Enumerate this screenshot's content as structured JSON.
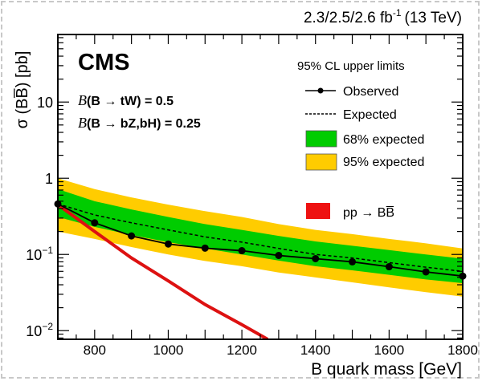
{
  "chart_data": {
    "type": "line",
    "experiment": "CMS",
    "lumi_label": "2.3/2.5/2.6 fb",
    "lumi_exp": "-1",
    "energy_label": "(13 TeV)",
    "annotations": [
      "B(B → tW) = 0.5",
      "B(B → bZ,bH) = 0.25"
    ],
    "annotation_parts": [
      {
        "B": "B",
        "rest": "(B → tW) = 0.5"
      },
      {
        "B": "B",
        "rest": "(B → bZ,bH) = 0.25"
      }
    ],
    "xlabel": "B quark mass [GeV]",
    "ylabel": "σ (BB̅) [pb]",
    "xlim": [
      700,
      1800
    ],
    "ylim": [
      0.0077,
      77
    ],
    "yscale": "log",
    "xticks": [
      800,
      1000,
      1200,
      1400,
      1600,
      1800
    ],
    "yticks": [
      {
        "v": 10,
        "label": "10"
      },
      {
        "v": 1,
        "label": "1"
      },
      {
        "v": 0.1,
        "label": "10",
        "exp": "−1"
      },
      {
        "v": 0.01,
        "label": "10",
        "exp": "−2"
      }
    ],
    "legend": {
      "title": "95% CL upper limits",
      "position": "top-right",
      "entries": [
        "Observed",
        "Expected",
        "68% expected",
        "95% expected",
        "pp → BB̅"
      ]
    },
    "colors": {
      "observed": "#000000",
      "expected": "#000000",
      "band68": "#00cc00",
      "band95": "#ffcc00",
      "theory": "#dd1111"
    },
    "x": [
      700,
      800,
      900,
      1000,
      1100,
      1200,
      1300,
      1400,
      1500,
      1600,
      1700,
      1800
    ],
    "series": [
      {
        "name": "Observed",
        "values": [
          0.46,
          0.26,
          0.175,
          0.137,
          0.121,
          0.112,
          0.097,
          0.088,
          0.08,
          0.069,
          0.059,
          0.052
        ]
      },
      {
        "name": "Expected",
        "values": [
          0.46,
          0.33,
          0.26,
          0.21,
          0.17,
          0.145,
          0.12,
          0.1,
          0.09,
          0.078,
          0.068,
          0.06
        ]
      },
      {
        "name": "68% expected",
        "low": [
          0.31,
          0.23,
          0.18,
          0.145,
          0.12,
          0.1,
          0.083,
          0.07,
          0.062,
          0.054,
          0.047,
          0.042
        ],
        "high": [
          0.72,
          0.5,
          0.39,
          0.31,
          0.25,
          0.21,
          0.175,
          0.148,
          0.13,
          0.114,
          0.1,
          0.088
        ]
      },
      {
        "name": "95% expected",
        "low": [
          0.2,
          0.16,
          0.125,
          0.1,
          0.082,
          0.07,
          0.058,
          0.05,
          0.043,
          0.037,
          0.032,
          0.028
        ],
        "high": [
          1.0,
          0.72,
          0.56,
          0.45,
          0.37,
          0.31,
          0.25,
          0.21,
          0.185,
          0.16,
          0.14,
          0.12
        ]
      }
    ],
    "theory": {
      "name": "pp → BB̅",
      "x": [
        700,
        800,
        900,
        1000,
        1100,
        1200,
        1270
      ],
      "values": [
        0.45,
        0.2,
        0.09,
        0.045,
        0.022,
        0.012,
        0.0077
      ]
    }
  }
}
